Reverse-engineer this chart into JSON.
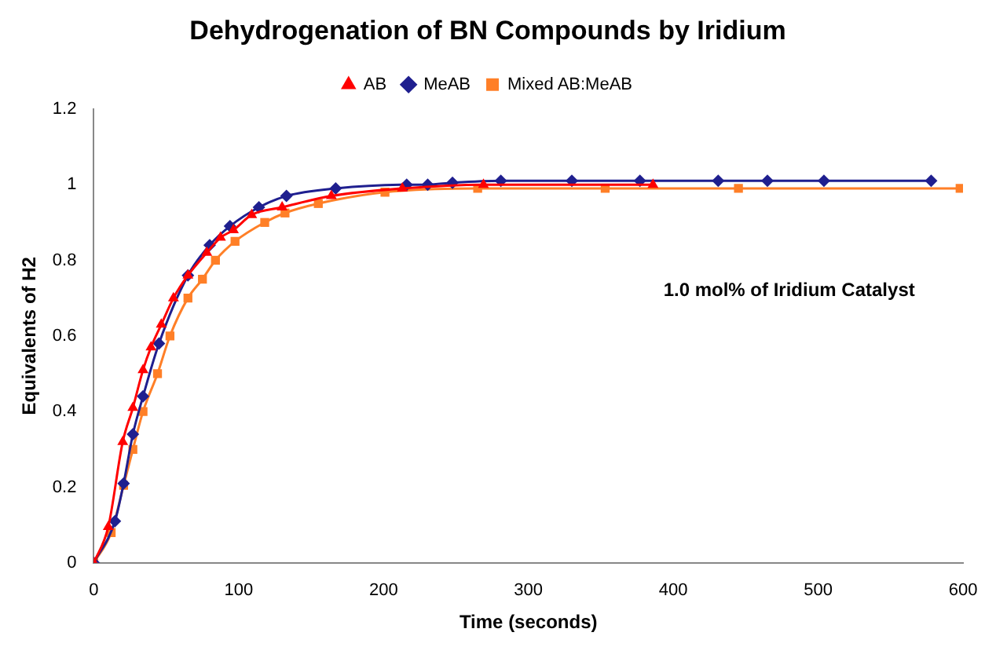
{
  "chart_data": {
    "type": "line",
    "title": "Dehydrogenation of BN Compounds by Iridium",
    "xlabel": "Time (seconds)",
    "ylabel": "Equivalents of H2",
    "annotations": [
      "1.0 mol% of Iridium Catalyst"
    ],
    "series": [
      {
        "name": "AB",
        "color": "#ff0000",
        "marker": "triangle",
        "x": [
          0,
          10,
          20,
          27,
          34,
          39.5,
          46.6,
          55,
          65,
          78,
          87.5,
          96.4,
          109,
          130,
          164,
          213,
          269,
          386
        ],
        "values": [
          0,
          0.095,
          0.32,
          0.41,
          0.51,
          0.57,
          0.63,
          0.7,
          0.76,
          0.82,
          0.86,
          0.88,
          0.92,
          0.94,
          0.97,
          0.99,
          1.0,
          1.0
        ]
      },
      {
        "name": "MeAB",
        "color": "#1f1f8f",
        "marker": "diamond",
        "x": [
          0,
          14.6,
          20.6,
          27,
          34,
          45,
          65,
          80,
          94,
          114,
          133,
          167,
          216,
          230.5,
          247.6,
          281,
          330,
          377,
          431,
          465,
          504,
          578
        ],
        "values": [
          0,
          0.11,
          0.21,
          0.34,
          0.44,
          0.58,
          0.76,
          0.84,
          0.89,
          0.94,
          0.97,
          0.99,
          1.0,
          1.0,
          1.005,
          1.01,
          1.01,
          1.01,
          1.01,
          1.01,
          1.01,
          1.01
        ]
      },
      {
        "name": "Mixed AB:MeAB",
        "color": "#ff7f27",
        "marker": "square",
        "x": [
          0,
          12,
          20.6,
          27,
          34,
          44,
          52.6,
          65,
          75,
          84,
          97.5,
          118,
          132,
          155,
          201,
          265,
          353,
          445,
          598
        ],
        "values": [
          0,
          0.08,
          0.205,
          0.3,
          0.4,
          0.5,
          0.6,
          0.7,
          0.75,
          0.8,
          0.85,
          0.9,
          0.925,
          0.95,
          0.98,
          0.99,
          0.99,
          0.99,
          0.99
        ]
      }
    ],
    "xlim": [
      0,
      600
    ],
    "xticks": [
      0,
      100,
      200,
      300,
      400,
      500,
      600
    ],
    "ylim": [
      0,
      1.2
    ],
    "yticks": [
      0,
      0.2,
      0.4,
      0.6,
      0.8,
      1,
      1.2
    ],
    "grid": false,
    "legend": "top"
  }
}
